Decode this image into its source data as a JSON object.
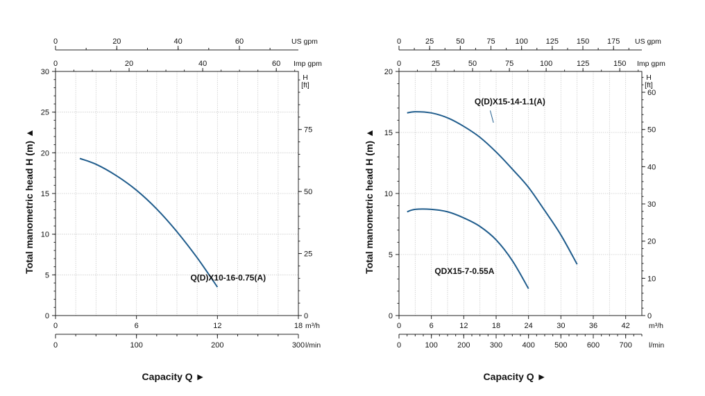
{
  "chart_data": [
    {
      "type": "line",
      "ylabel": "Total manometric head H (m)",
      "xlabel": "Capacity Q",
      "arrow": "►",
      "x_m3h": {
        "unit": "m³/h",
        "ticks": [
          "0",
          "6",
          "12",
          "18"
        ],
        "range": [
          0,
          18
        ]
      },
      "x_lmin": {
        "unit": "l/min",
        "ticks": [
          "0",
          "100",
          "200",
          "300"
        ],
        "range": [
          0,
          300
        ]
      },
      "x_usgpm": {
        "unit": "US gpm",
        "ticks": [
          "0",
          "20",
          "40",
          "60"
        ],
        "range": [
          0,
          79.25
        ]
      },
      "x_impgpm": {
        "unit": "Imp gpm",
        "ticks": [
          "0",
          "20",
          "40",
          "60"
        ],
        "range": [
          0,
          66
        ]
      },
      "y_m": {
        "ticks": [
          "0",
          "5",
          "10",
          "15",
          "20",
          "25",
          "30"
        ],
        "range": [
          0,
          30
        ]
      },
      "y_ft": {
        "unit_top": "H",
        "unit_bottom": "[ft]",
        "ticks": [
          "0",
          "25",
          "50",
          "75"
        ],
        "range": [
          0,
          98.4
        ]
      },
      "series": [
        {
          "name": "Q(D)X10-16-0.75(A)",
          "x": [
            1.8,
            3,
            4.5,
            6,
            7.5,
            9,
            10.5,
            12
          ],
          "y": [
            19.3,
            18.6,
            17.2,
            15.4,
            13.1,
            10.3,
            7.1,
            3.5
          ]
        }
      ]
    },
    {
      "type": "line",
      "ylabel": "Total manometric head H (m)",
      "xlabel": "Capacity Q",
      "arrow": "►",
      "x_m3h": {
        "unit": "m³/h",
        "ticks": [
          "0",
          "6",
          "12",
          "18",
          "24",
          "30",
          "36",
          "42"
        ],
        "range": [
          0,
          45
        ]
      },
      "x_lmin": {
        "unit": "l/min",
        "ticks": [
          "0",
          "100",
          "200",
          "300",
          "400",
          "500",
          "600",
          "700"
        ],
        "range": [
          0,
          750
        ]
      },
      "x_usgpm": {
        "unit": "US gpm",
        "ticks": [
          "0",
          "25",
          "50",
          "75",
          "100",
          "125",
          "150",
          "175"
        ],
        "range": [
          0,
          198.1
        ]
      },
      "x_impgpm": {
        "unit": "Imp gpm",
        "ticks": [
          "0",
          "25",
          "50",
          "75",
          "100",
          "125",
          "150"
        ],
        "range": [
          0,
          165
        ]
      },
      "y_m": {
        "ticks": [
          "0",
          "5",
          "10",
          "15",
          "20"
        ],
        "range": [
          0,
          20
        ]
      },
      "y_ft": {
        "unit_top": "H",
        "unit_bottom": "[ft]",
        "ticks": [
          "0",
          "10",
          "20",
          "30",
          "40",
          "50",
          "60"
        ],
        "range": [
          0,
          65.6
        ]
      },
      "series": [
        {
          "name": "Q(D)X15-14-1.1(A)",
          "x": [
            1.5,
            3,
            6,
            9,
            12,
            15,
            18,
            21,
            24,
            27,
            30,
            33
          ],
          "y": [
            16.6,
            16.7,
            16.6,
            16.2,
            15.5,
            14.6,
            13.4,
            12.0,
            10.5,
            8.6,
            6.6,
            4.2
          ]
        },
        {
          "name": "QDX15-7-0.55A",
          "x": [
            1.5,
            3,
            6,
            9,
            12,
            15,
            18,
            21,
            24
          ],
          "y": [
            8.5,
            8.7,
            8.7,
            8.5,
            8.0,
            7.3,
            6.2,
            4.5,
            2.2
          ]
        }
      ]
    }
  ]
}
